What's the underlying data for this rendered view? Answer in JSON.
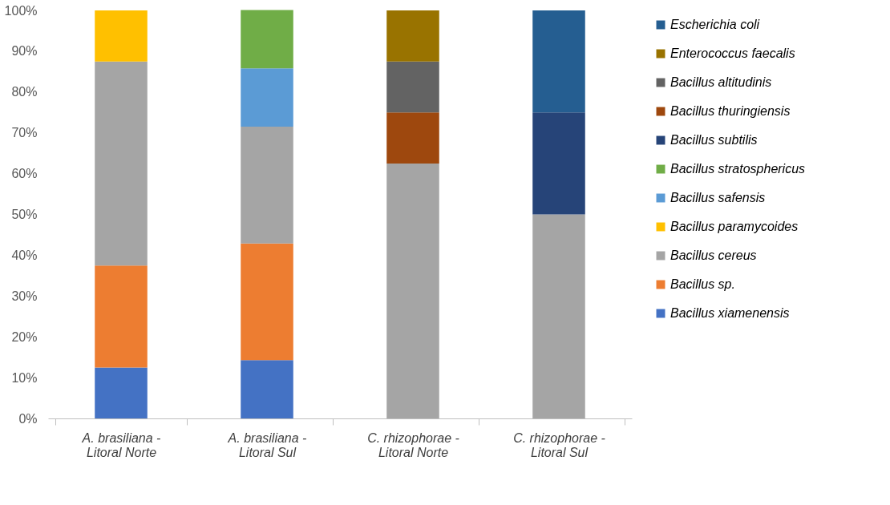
{
  "chart_data": {
    "type": "bar",
    "stacked": true,
    "categories": [
      "A. brasiliana -\nLitoral Norte",
      "A. brasiliana -\nLitoral Sul",
      "C. rhizophorae -\nLitoral Norte",
      "C. rhizophorae -\nLitoral Sul"
    ],
    "series": [
      {
        "name": "Bacillus xiamenensis",
        "color": "#4472c4",
        "values": [
          12.5,
          14.3,
          null,
          null
        ]
      },
      {
        "name": "Bacillus sp.",
        "color": "#ed7d31",
        "values": [
          25,
          28.6,
          null,
          null
        ]
      },
      {
        "name": "Bacillus cereus",
        "color": "#a5a5a5",
        "values": [
          50,
          28.6,
          62.5,
          50
        ]
      },
      {
        "name": "Bacillus paramycoides",
        "color": "#ffc000",
        "values": [
          12.5,
          null,
          null,
          null
        ]
      },
      {
        "name": "Bacillus safensis",
        "color": "#5b9bd5",
        "values": [
          null,
          14.3,
          null,
          null
        ]
      },
      {
        "name": "Bacillus stratosphericus",
        "color": "#70ad47",
        "values": [
          null,
          14.3,
          null,
          null
        ]
      },
      {
        "name": "Bacillus subtilis",
        "color": "#264478",
        "values": [
          null,
          null,
          null,
          25
        ]
      },
      {
        "name": "Bacillus thuringiensis",
        "color": "#9e480e",
        "values": [
          null,
          null,
          12.5,
          null
        ]
      },
      {
        "name": "Bacillus altitudinis",
        "color": "#636363",
        "values": [
          null,
          null,
          12.5,
          null
        ]
      },
      {
        "name": "Enterococcus faecalis",
        "color": "#997300",
        "values": [
          null,
          null,
          12.5,
          null
        ]
      },
      {
        "name": "Escherichia coli",
        "color": "#255e91",
        "values": [
          null,
          null,
          null,
          25
        ]
      }
    ],
    "ylim": [
      0,
      100
    ],
    "yticks": [
      {
        "value": 0,
        "label": "0%"
      },
      {
        "value": 10,
        "label": "10%"
      },
      {
        "value": 20,
        "label": "20%"
      },
      {
        "value": 30,
        "label": "30%"
      },
      {
        "value": 40,
        "label": "40%"
      },
      {
        "value": 50,
        "label": "50%"
      },
      {
        "value": 60,
        "label": "60%"
      },
      {
        "value": 70,
        "label": "70%"
      },
      {
        "value": 80,
        "label": "80%"
      },
      {
        "value": 90,
        "label": "90%"
      },
      {
        "value": 100,
        "label": "100%"
      }
    ],
    "grid": false,
    "legend": "right"
  }
}
